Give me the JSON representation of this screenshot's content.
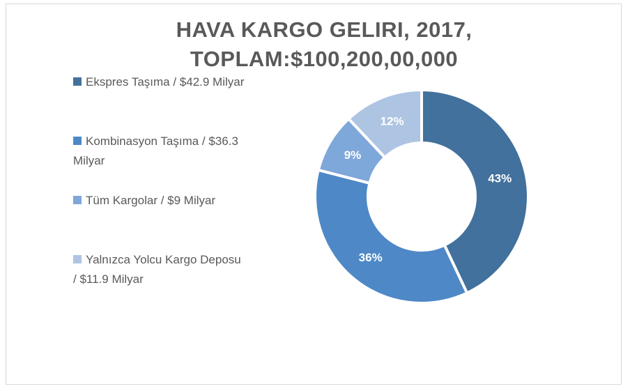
{
  "chart_data": {
    "type": "doughnut",
    "title": "HAVA KARGO GELIRI, 2017, TOPLAM:$100,200,00,000",
    "categories": [
      "Ekspres Taşıma / $42.9 Milyar",
      "Kombinasyon Taşıma / $36.3 Milyar",
      "Tüm Kargolar / $9 Milyar",
      "Yalnızca Yolcu Kargo Deposu / $11.9 Milyar"
    ],
    "values": [
      43,
      36,
      9,
      12
    ],
    "value_labels": [
      "43%",
      "36%",
      "9%",
      "12%"
    ],
    "colors": [
      "#41719c",
      "#4e88c7",
      "#7ea7da",
      "#aec4e3"
    ],
    "legend": "left"
  }
}
